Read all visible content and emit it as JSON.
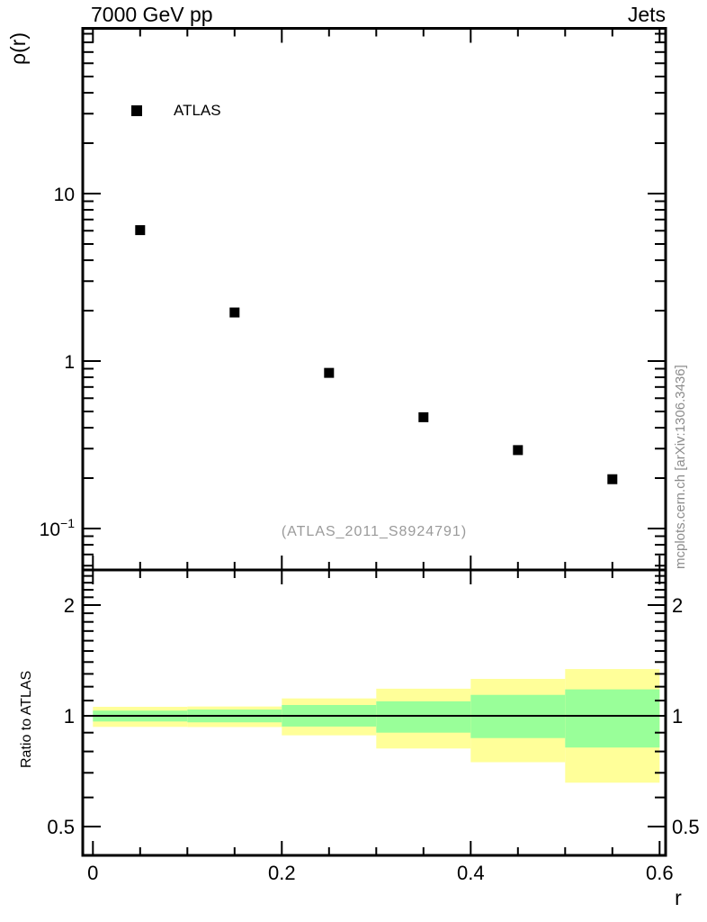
{
  "figure": {
    "title_left": "7000 GeV pp",
    "title_right": "Jets",
    "watermark": "(ATLAS_2011_S8924791)",
    "side_note": "mcplots.cern.ch [arXiv:1306.3436]",
    "colors": {
      "band_outer": "#ffff99",
      "band_inner": "#99ff99",
      "marker": "#000000",
      "frame": "#000000",
      "watermark_gray": "#9a9a9a",
      "side_note_gray": "#8c8c8c"
    }
  },
  "chart_data": [
    {
      "type": "scatter",
      "panel": "main",
      "title": "7000 GeV pp",
      "corner_label": "Jets",
      "xlabel": "r",
      "ylabel": "ρ(r)",
      "yscale": "log",
      "xlim": [
        -0.011,
        0.606
      ],
      "ylim": [
        0.057,
        96
      ],
      "grid": false,
      "legend_position": "top-left-inside",
      "series": [
        {
          "name": "ATLAS",
          "marker": "filled-square",
          "color": "#000000",
          "x": [
            0.05,
            0.15,
            0.25,
            0.35,
            0.45,
            0.55
          ],
          "y": [
            6.05,
            1.95,
            0.85,
            0.462,
            0.294,
            0.197
          ]
        }
      ],
      "yticks_major": [
        {
          "v": 10,
          "t": "10"
        },
        {
          "v": 1,
          "t": "1"
        },
        {
          "v": 0.1,
          "t": "10",
          "exp": "−1"
        }
      ],
      "yticks_minor": [
        0.06,
        0.07,
        0.08,
        0.09,
        0.2,
        0.3,
        0.4,
        0.5,
        0.6,
        0.7,
        0.8,
        0.9,
        2,
        3,
        4,
        5,
        6,
        7,
        8,
        9,
        20,
        30,
        40,
        50,
        60,
        70,
        80,
        90
      ],
      "xticks_major": [
        {
          "v": 0,
          "t": "0"
        },
        {
          "v": 0.2,
          "t": "0.2"
        },
        {
          "v": 0.4,
          "t": "0.4"
        },
        {
          "v": 0.6,
          "t": "0.6"
        }
      ],
      "xticks_minor": [
        0.05,
        0.1,
        0.15,
        0.25,
        0.3,
        0.35,
        0.45,
        0.5,
        0.55
      ]
    },
    {
      "type": "area",
      "panel": "ratio",
      "ylabel": "Ratio to ATLAS",
      "yscale": "log",
      "xlim": [
        -0.011,
        0.606
      ],
      "ylim": [
        0.417,
        2.49
      ],
      "reference_line": 1,
      "bands": [
        {
          "r": [
            0.0,
            0.1
          ],
          "outer": [
            0.933,
            1.058
          ],
          "inner": [
            0.965,
            1.033
          ]
        },
        {
          "r": [
            0.1,
            0.2
          ],
          "outer": [
            0.932,
            1.06
          ],
          "inner": [
            0.96,
            1.04
          ]
        },
        {
          "r": [
            0.2,
            0.3
          ],
          "outer": [
            0.885,
            1.115
          ],
          "inner": [
            0.935,
            1.07
          ]
        },
        {
          "r": [
            0.3,
            0.4
          ],
          "outer": [
            0.815,
            1.185
          ],
          "inner": [
            0.9,
            1.095
          ]
        },
        {
          "r": [
            0.4,
            0.5
          ],
          "outer": [
            0.748,
            1.26
          ],
          "inner": [
            0.87,
            1.14
          ]
        },
        {
          "r": [
            0.5,
            0.6
          ],
          "outer": [
            0.658,
            1.34
          ],
          "inner": [
            0.82,
            1.18
          ]
        }
      ],
      "yticks_major": [
        {
          "v": 2,
          "t": "2"
        },
        {
          "v": 1,
          "t": "1"
        },
        {
          "v": 0.5,
          "t": "0.5"
        }
      ],
      "yticks_minor": [
        0.6,
        0.7,
        0.8,
        0.9,
        1.1,
        1.2,
        1.3,
        1.4,
        1.5,
        1.6,
        1.7,
        1.8,
        1.9,
        2.1,
        2.2,
        2.3,
        2.4
      ],
      "ytick_labels_both_sides": true
    }
  ]
}
